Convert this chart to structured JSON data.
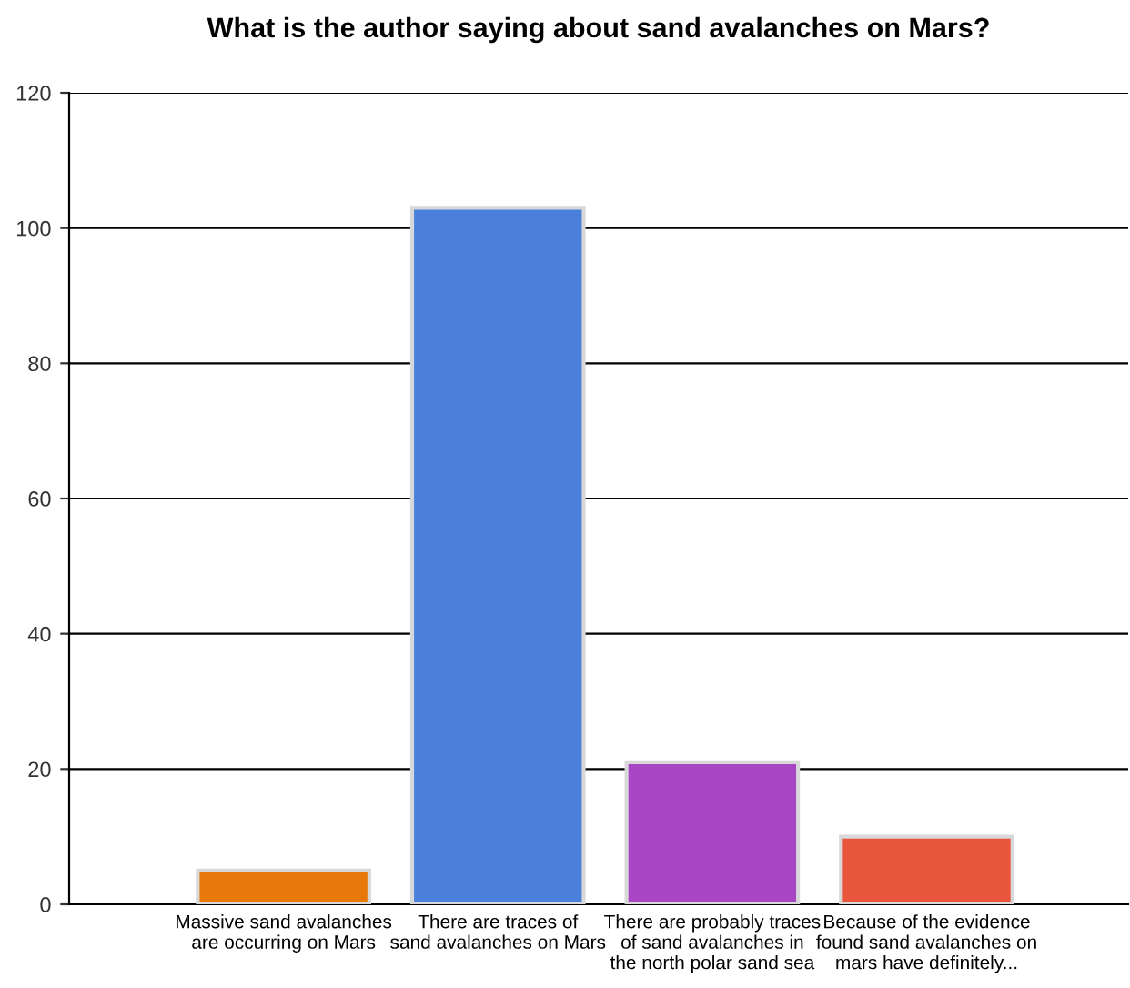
{
  "chart_data": {
    "type": "bar",
    "title": "What is the author saying about sand avalanches on Mars?",
    "categories": [
      "Massive sand avalanches\nare occurring on Mars",
      "There are traces of\nsand avalanches on Mars",
      "There are probably traces\nof sand avalanches in\nthe north polar sand sea",
      "Because of the evidence\nfound sand avalanches on\nmars have definitely..."
    ],
    "values": [
      5,
      103,
      21,
      10
    ],
    "colors": [
      "#e8780a",
      "#4a80dc",
      "#a845c4",
      "#e8553a"
    ],
    "ylim": [
      0,
      120
    ],
    "yticks": [
      0,
      20,
      40,
      60,
      80,
      100,
      120
    ],
    "grid": "y"
  }
}
